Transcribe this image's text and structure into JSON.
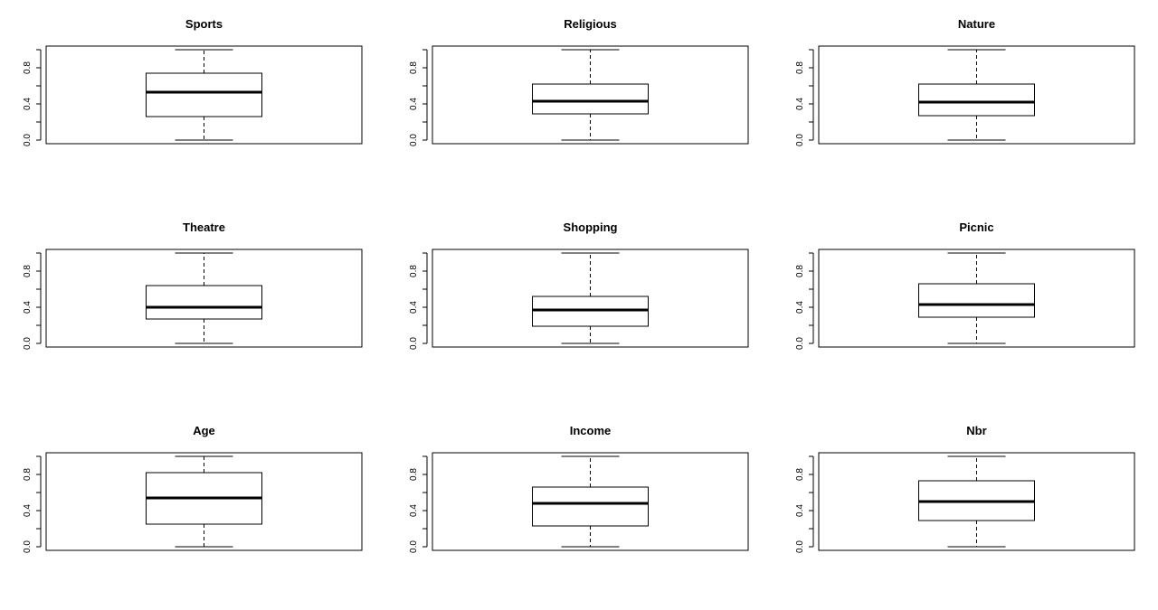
{
  "chart_data": [
    {
      "type": "boxplot",
      "title": "Sports",
      "ylim": [
        0,
        1.05
      ],
      "yticks": [
        0.0,
        0.4,
        0.8
      ],
      "ytick_labels": [
        "0.0",
        "0.4",
        "0.8"
      ],
      "box": {
        "min": 0.0,
        "q1": 0.26,
        "median": 0.53,
        "q3": 0.74,
        "max": 1.0
      }
    },
    {
      "type": "boxplot",
      "title": "Religious",
      "ylim": [
        0,
        1.05
      ],
      "yticks": [
        0.0,
        0.4,
        0.8
      ],
      "ytick_labels": [
        "0.0",
        "0.4",
        "0.8"
      ],
      "box": {
        "min": 0.0,
        "q1": 0.29,
        "median": 0.43,
        "q3": 0.62,
        "max": 1.0
      }
    },
    {
      "type": "boxplot",
      "title": "Nature",
      "ylim": [
        0,
        1.05
      ],
      "yticks": [
        0.0,
        0.4,
        0.8
      ],
      "ytick_labels": [
        "0.0",
        "0.4",
        "0.8"
      ],
      "box": {
        "min": 0.0,
        "q1": 0.27,
        "median": 0.42,
        "q3": 0.62,
        "max": 1.0
      }
    },
    {
      "type": "boxplot",
      "title": "Theatre",
      "ylim": [
        0,
        1.05
      ],
      "yticks": [
        0.0,
        0.4,
        0.8
      ],
      "ytick_labels": [
        "0.0",
        "0.4",
        "0.8"
      ],
      "box": {
        "min": 0.0,
        "q1": 0.27,
        "median": 0.4,
        "q3": 0.64,
        "max": 1.0
      }
    },
    {
      "type": "boxplot",
      "title": "Shopping",
      "ylim": [
        0,
        1.05
      ],
      "yticks": [
        0.0,
        0.4,
        0.8
      ],
      "ytick_labels": [
        "0.0",
        "0.4",
        "0.8"
      ],
      "box": {
        "min": 0.0,
        "q1": 0.19,
        "median": 0.37,
        "q3": 0.52,
        "max": 1.0
      }
    },
    {
      "type": "boxplot",
      "title": "Picnic",
      "ylim": [
        0,
        1.05
      ],
      "yticks": [
        0.0,
        0.4,
        0.8
      ],
      "ytick_labels": [
        "0.0",
        "0.4",
        "0.8"
      ],
      "box": {
        "min": 0.0,
        "q1": 0.29,
        "median": 0.43,
        "q3": 0.66,
        "max": 1.0
      }
    },
    {
      "type": "boxplot",
      "title": "Age",
      "ylim": [
        0,
        1.05
      ],
      "yticks": [
        0.0,
        0.4,
        0.8
      ],
      "ytick_labels": [
        "0.0",
        "0.4",
        "0.8"
      ],
      "box": {
        "min": 0.0,
        "q1": 0.25,
        "median": 0.54,
        "q3": 0.82,
        "max": 1.0
      }
    },
    {
      "type": "boxplot",
      "title": "Income",
      "ylim": [
        0,
        1.05
      ],
      "yticks": [
        0.0,
        0.4,
        0.8
      ],
      "ytick_labels": [
        "0.0",
        "0.4",
        "0.8"
      ],
      "box": {
        "min": 0.0,
        "q1": 0.23,
        "median": 0.48,
        "q3": 0.66,
        "max": 1.0
      }
    },
    {
      "type": "boxplot",
      "title": "Nbr",
      "ylim": [
        0,
        1.05
      ],
      "yticks": [
        0.0,
        0.4,
        0.8
      ],
      "ytick_labels": [
        "0.0",
        "0.4",
        "0.8"
      ],
      "box": {
        "min": 0.0,
        "q1": 0.29,
        "median": 0.5,
        "q3": 0.73,
        "max": 1.0
      }
    }
  ]
}
